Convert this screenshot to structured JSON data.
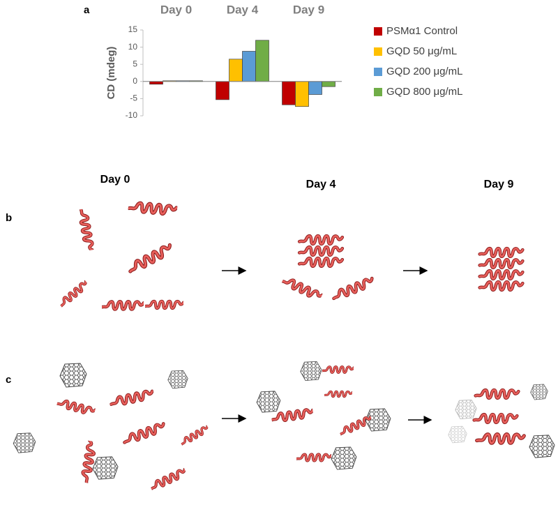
{
  "chart_data": {
    "type": "bar",
    "categories": [
      "Day 0",
      "Day 4",
      "Day 9"
    ],
    "series": [
      {
        "name": "PSMα1 Control",
        "color": "#c00000",
        "values": [
          -0.8,
          -5.3,
          -6.8
        ]
      },
      {
        "name": "GQD 50 μg/mL",
        "color": "#ffc000",
        "values": [
          0.2,
          6.5,
          -7.3
        ]
      },
      {
        "name": "GQD 200 μg/mL",
        "color": "#5b9bd5",
        "values": [
          0.2,
          8.8,
          -3.8
        ]
      },
      {
        "name": "GQD 800 μg/mL",
        "color": "#70ad47",
        "values": [
          0.2,
          12,
          -1.5
        ]
      }
    ],
    "ylabel": "CD (mdeg)",
    "ylim": [
      -10,
      15
    ],
    "yticks": [
      -10,
      -5,
      0,
      5,
      10,
      15
    ],
    "legend": "right"
  },
  "panel_labels": [
    "a",
    "b",
    "c"
  ],
  "panel_b": {
    "days": [
      "Day 0",
      "Day 4",
      "Day 9"
    ]
  }
}
